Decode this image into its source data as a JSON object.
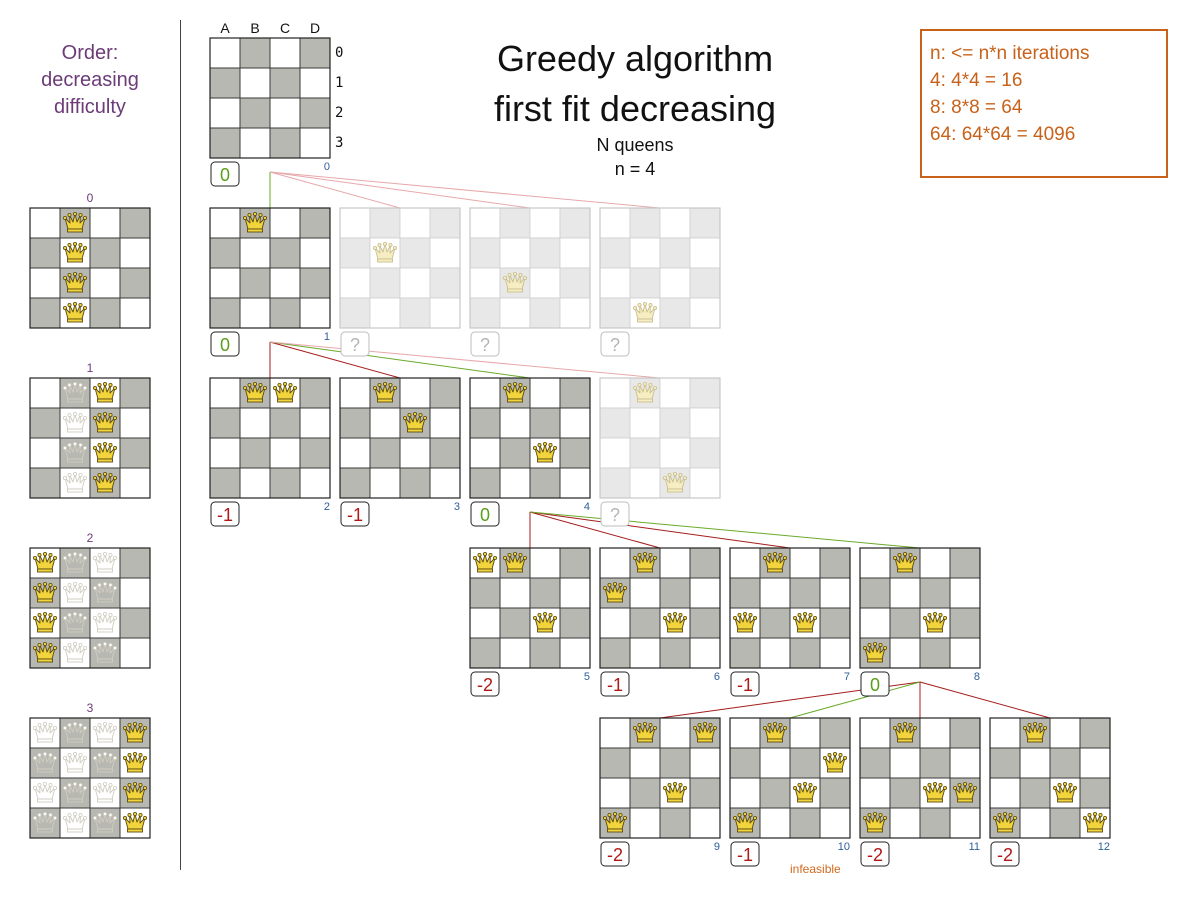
{
  "title_line1": "Greedy algorithm",
  "title_line2": "first fit decreasing",
  "subtitle_line1": "N queens",
  "subtitle_line2": "n = 4",
  "order_label_line1": "Order:",
  "order_label_line2": "decreasing",
  "order_label_line3": "difficulty",
  "info_lines": [
    "n: <= n*n iterations",
    "4: 4*4 = 16",
    "8: 8*8 = 64",
    "64: 64*64 = 4096"
  ],
  "column_letters": [
    "A",
    "B",
    "C",
    "D"
  ],
  "row_numbers": [
    "0",
    "1",
    "2",
    "3"
  ],
  "infeasible_label": "infeasible",
  "colors": {
    "dark_square": "#b8b8b2",
    "light_square": "#ffffff",
    "faded_dark_square": "#e8e8e8",
    "score_green": "#5a9e1b",
    "score_red": "#b01818",
    "edge_green": "#6aaa2a",
    "edge_red": "#a51c1c",
    "edge_faded": "#e7a8ab",
    "node_number": "#2e5e9a",
    "order_purple": "#6c3b78",
    "info_orange": "#c8621a",
    "queen_gold": "#f2d43c"
  },
  "difficulty_boards": [
    {
      "label": "0",
      "queens": [
        {
          "col": 1,
          "row": 0,
          "style": "gold"
        },
        {
          "col": 1,
          "row": 1,
          "style": "gold"
        },
        {
          "col": 1,
          "row": 2,
          "style": "gold"
        },
        {
          "col": 1,
          "row": 3,
          "style": "gold"
        }
      ]
    },
    {
      "label": "1",
      "queens": [
        {
          "col": 1,
          "row": 0,
          "style": "ghost"
        },
        {
          "col": 2,
          "row": 0,
          "style": "gold"
        },
        {
          "col": 1,
          "row": 1,
          "style": "ghost"
        },
        {
          "col": 2,
          "row": 1,
          "style": "gold"
        },
        {
          "col": 1,
          "row": 2,
          "style": "ghost"
        },
        {
          "col": 2,
          "row": 2,
          "style": "gold"
        },
        {
          "col": 1,
          "row": 3,
          "style": "ghost"
        },
        {
          "col": 2,
          "row": 3,
          "style": "gold"
        }
      ]
    },
    {
      "label": "2",
      "queens": [
        {
          "col": 0,
          "row": 0,
          "style": "gold"
        },
        {
          "col": 1,
          "row": 0,
          "style": "ghost"
        },
        {
          "col": 2,
          "row": 0,
          "style": "ghost"
        },
        {
          "col": 0,
          "row": 1,
          "style": "gold"
        },
        {
          "col": 1,
          "row": 1,
          "style": "ghost"
        },
        {
          "col": 2,
          "row": 1,
          "style": "ghost"
        },
        {
          "col": 0,
          "row": 2,
          "style": "gold"
        },
        {
          "col": 1,
          "row": 2,
          "style": "ghost"
        },
        {
          "col": 2,
          "row": 2,
          "style": "ghost"
        },
        {
          "col": 0,
          "row": 3,
          "style": "gold"
        },
        {
          "col": 1,
          "row": 3,
          "style": "ghost"
        },
        {
          "col": 2,
          "row": 3,
          "style": "ghost"
        }
      ]
    },
    {
      "label": "3",
      "queens": [
        {
          "col": 0,
          "row": 0,
          "style": "ghost"
        },
        {
          "col": 1,
          "row": 0,
          "style": "ghost"
        },
        {
          "col": 2,
          "row": 0,
          "style": "ghost"
        },
        {
          "col": 3,
          "row": 0,
          "style": "gold"
        },
        {
          "col": 0,
          "row": 1,
          "style": "ghost"
        },
        {
          "col": 1,
          "row": 1,
          "style": "ghost"
        },
        {
          "col": 2,
          "row": 1,
          "style": "ghost"
        },
        {
          "col": 3,
          "row": 1,
          "style": "gold"
        },
        {
          "col": 0,
          "row": 2,
          "style": "ghost"
        },
        {
          "col": 1,
          "row": 2,
          "style": "ghost"
        },
        {
          "col": 2,
          "row": 2,
          "style": "ghost"
        },
        {
          "col": 3,
          "row": 2,
          "style": "gold"
        },
        {
          "col": 0,
          "row": 3,
          "style": "ghost"
        },
        {
          "col": 1,
          "row": 3,
          "style": "ghost"
        },
        {
          "col": 2,
          "row": 3,
          "style": "ghost"
        },
        {
          "col": 3,
          "row": 3,
          "style": "gold"
        }
      ]
    }
  ],
  "tree_nodes": [
    {
      "id": "n0",
      "number": "0",
      "score": "0",
      "score_color": "green",
      "faded": false,
      "queens": []
    },
    {
      "id": "n1",
      "number": "1",
      "score": "0",
      "score_color": "green",
      "faded": false,
      "queens": [
        [
          1,
          0
        ]
      ]
    },
    {
      "id": "f1a",
      "number": "",
      "score": "?",
      "score_color": "faded",
      "faded": true,
      "queens": [
        [
          1,
          1
        ]
      ]
    },
    {
      "id": "f1b",
      "number": "",
      "score": "?",
      "score_color": "faded",
      "faded": true,
      "queens": [
        [
          1,
          2
        ]
      ]
    },
    {
      "id": "f1c",
      "number": "",
      "score": "?",
      "score_color": "faded",
      "faded": true,
      "queens": [
        [
          1,
          3
        ]
      ]
    },
    {
      "id": "n2",
      "number": "2",
      "score": "-1",
      "score_color": "red",
      "faded": false,
      "queens": [
        [
          1,
          0
        ],
        [
          2,
          0
        ]
      ]
    },
    {
      "id": "n3",
      "number": "3",
      "score": "-1",
      "score_color": "red",
      "faded": false,
      "queens": [
        [
          1,
          0
        ],
        [
          2,
          1
        ]
      ]
    },
    {
      "id": "n4",
      "number": "4",
      "score": "0",
      "score_color": "green",
      "faded": false,
      "queens": [
        [
          1,
          0
        ],
        [
          2,
          2
        ]
      ]
    },
    {
      "id": "f2",
      "number": "",
      "score": "?",
      "score_color": "faded",
      "faded": true,
      "queens": [
        [
          1,
          0
        ],
        [
          2,
          3
        ]
      ]
    },
    {
      "id": "n5",
      "number": "5",
      "score": "-2",
      "score_color": "red",
      "faded": false,
      "queens": [
        [
          0,
          0
        ],
        [
          1,
          0
        ],
        [
          2,
          2
        ]
      ]
    },
    {
      "id": "n6",
      "number": "6",
      "score": "-1",
      "score_color": "red",
      "faded": false,
      "queens": [
        [
          0,
          1
        ],
        [
          1,
          0
        ],
        [
          2,
          2
        ]
      ]
    },
    {
      "id": "n7",
      "number": "7",
      "score": "-1",
      "score_color": "red",
      "faded": false,
      "queens": [
        [
          0,
          2
        ],
        [
          1,
          0
        ],
        [
          2,
          2
        ]
      ]
    },
    {
      "id": "n8",
      "number": "8",
      "score": "0",
      "score_color": "green",
      "faded": false,
      "queens": [
        [
          0,
          3
        ],
        [
          1,
          0
        ],
        [
          2,
          2
        ]
      ]
    },
    {
      "id": "n9",
      "number": "9",
      "score": "-2",
      "score_color": "red",
      "faded": false,
      "queens": [
        [
          0,
          3
        ],
        [
          1,
          0
        ],
        [
          2,
          2
        ],
        [
          3,
          0
        ]
      ]
    },
    {
      "id": "n10",
      "number": "10",
      "score": "-1",
      "score_color": "red",
      "faded": false,
      "queens": [
        [
          0,
          3
        ],
        [
          1,
          0
        ],
        [
          2,
          2
        ],
        [
          3,
          1
        ]
      ]
    },
    {
      "id": "n11",
      "number": "11",
      "score": "-2",
      "score_color": "red",
      "faded": false,
      "queens": [
        [
          0,
          3
        ],
        [
          1,
          0
        ],
        [
          2,
          2
        ],
        [
          3,
          2
        ]
      ]
    },
    {
      "id": "n12",
      "number": "12",
      "score": "-2",
      "score_color": "red",
      "faded": false,
      "queens": [
        [
          0,
          3
        ],
        [
          1,
          0
        ],
        [
          2,
          2
        ],
        [
          3,
          3
        ]
      ]
    }
  ],
  "tree_edges": [
    {
      "from": "n0",
      "to": "n1",
      "color": "green"
    },
    {
      "from": "n0",
      "to": "f1a",
      "color": "faded"
    },
    {
      "from": "n0",
      "to": "f1b",
      "color": "faded"
    },
    {
      "from": "n0",
      "to": "f1c",
      "color": "faded"
    },
    {
      "from": "n1",
      "to": "n2",
      "color": "red"
    },
    {
      "from": "n1",
      "to": "n3",
      "color": "red"
    },
    {
      "from": "n1",
      "to": "n4",
      "color": "green"
    },
    {
      "from": "n1",
      "to": "f2",
      "color": "faded"
    },
    {
      "from": "n4",
      "to": "n5",
      "color": "red"
    },
    {
      "from": "n4",
      "to": "n6",
      "color": "red"
    },
    {
      "from": "n4",
      "to": "n7",
      "color": "red"
    },
    {
      "from": "n4",
      "to": "n8",
      "color": "green"
    },
    {
      "from": "n8",
      "to": "n9",
      "color": "red"
    },
    {
      "from": "n8",
      "to": "n10",
      "color": "green"
    },
    {
      "from": "n8",
      "to": "n11",
      "color": "red"
    },
    {
      "from": "n8",
      "to": "n12",
      "color": "red"
    }
  ]
}
